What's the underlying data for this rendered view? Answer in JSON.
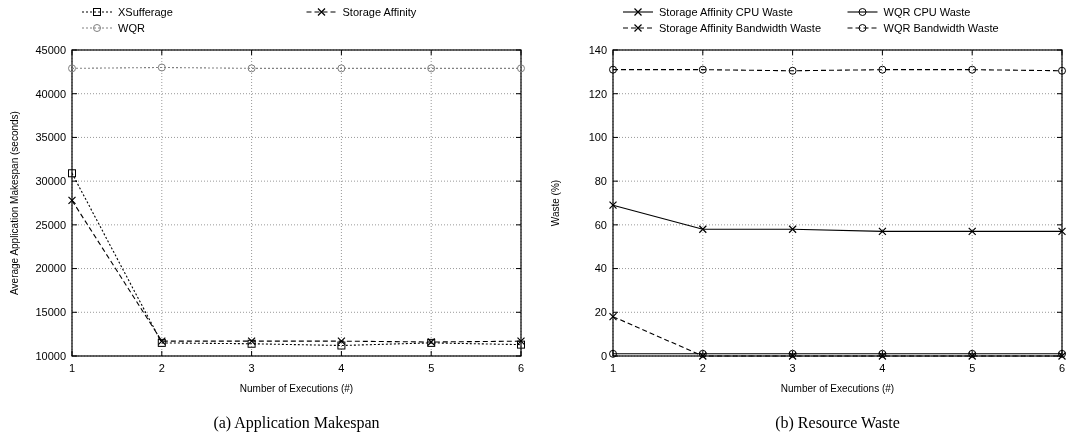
{
  "chart_data": [
    {
      "type": "line",
      "title": "(a) Application Makespan",
      "xlabel": "Number of Executions (#)",
      "ylabel": "Average Application Makespan (seconds)",
      "x": [
        1,
        2,
        3,
        4,
        5,
        6
      ],
      "xlim": [
        1,
        6
      ],
      "xticks": [
        1,
        2,
        3,
        4,
        5,
        6
      ],
      "ylim": [
        10000,
        45000
      ],
      "yticks": [
        10000,
        15000,
        20000,
        25000,
        30000,
        35000,
        40000,
        45000
      ],
      "grid": true,
      "legend": "top",
      "series": [
        {
          "name": "XSufferage",
          "color": "#000000",
          "line_style": "dotted",
          "marker": "square",
          "values": [
            30900,
            11500,
            11400,
            11200,
            11500,
            11300
          ]
        },
        {
          "name": "Storage Affinity",
          "color": "#000000",
          "line_style": "dashed",
          "marker": "cross",
          "values": [
            27800,
            11700,
            11700,
            11700,
            11600,
            11700
          ]
        },
        {
          "name": "WQR",
          "color": "#808080",
          "line_style": "dotted",
          "marker": "circle",
          "values": [
            42900,
            43000,
            42900,
            42900,
            42900,
            42900
          ]
        }
      ]
    },
    {
      "type": "line",
      "title": "(b) Resource Waste",
      "xlabel": "Number of Executions (#)",
      "ylabel": "Waste (%)",
      "x": [
        1,
        2,
        3,
        4,
        5,
        6
      ],
      "xlim": [
        1,
        6
      ],
      "xticks": [
        1,
        2,
        3,
        4,
        5,
        6
      ],
      "ylim": [
        0,
        140
      ],
      "yticks": [
        0,
        20,
        40,
        60,
        80,
        100,
        120,
        140
      ],
      "grid": true,
      "legend": "top",
      "series": [
        {
          "name": "Storage Affinity CPU Waste",
          "color": "#000000",
          "line_style": "solid",
          "marker": "cross",
          "values": [
            69,
            58,
            58,
            57,
            57,
            57
          ]
        },
        {
          "name": "WQR CPU Waste",
          "color": "#000000",
          "line_style": "solid",
          "marker": "circle",
          "values": [
            1,
            1,
            1,
            1,
            1,
            1
          ]
        },
        {
          "name": "Storage Affinity Bandwidth Waste",
          "color": "#000000",
          "line_style": "dashed",
          "marker": "cross",
          "values": [
            18,
            0,
            0,
            0,
            0,
            0
          ]
        },
        {
          "name": "WQR Bandwidth Waste",
          "color": "#000000",
          "line_style": "dashed",
          "marker": "circle",
          "values": [
            131,
            131,
            130.5,
            131,
            131,
            130.5
          ]
        }
      ]
    }
  ]
}
